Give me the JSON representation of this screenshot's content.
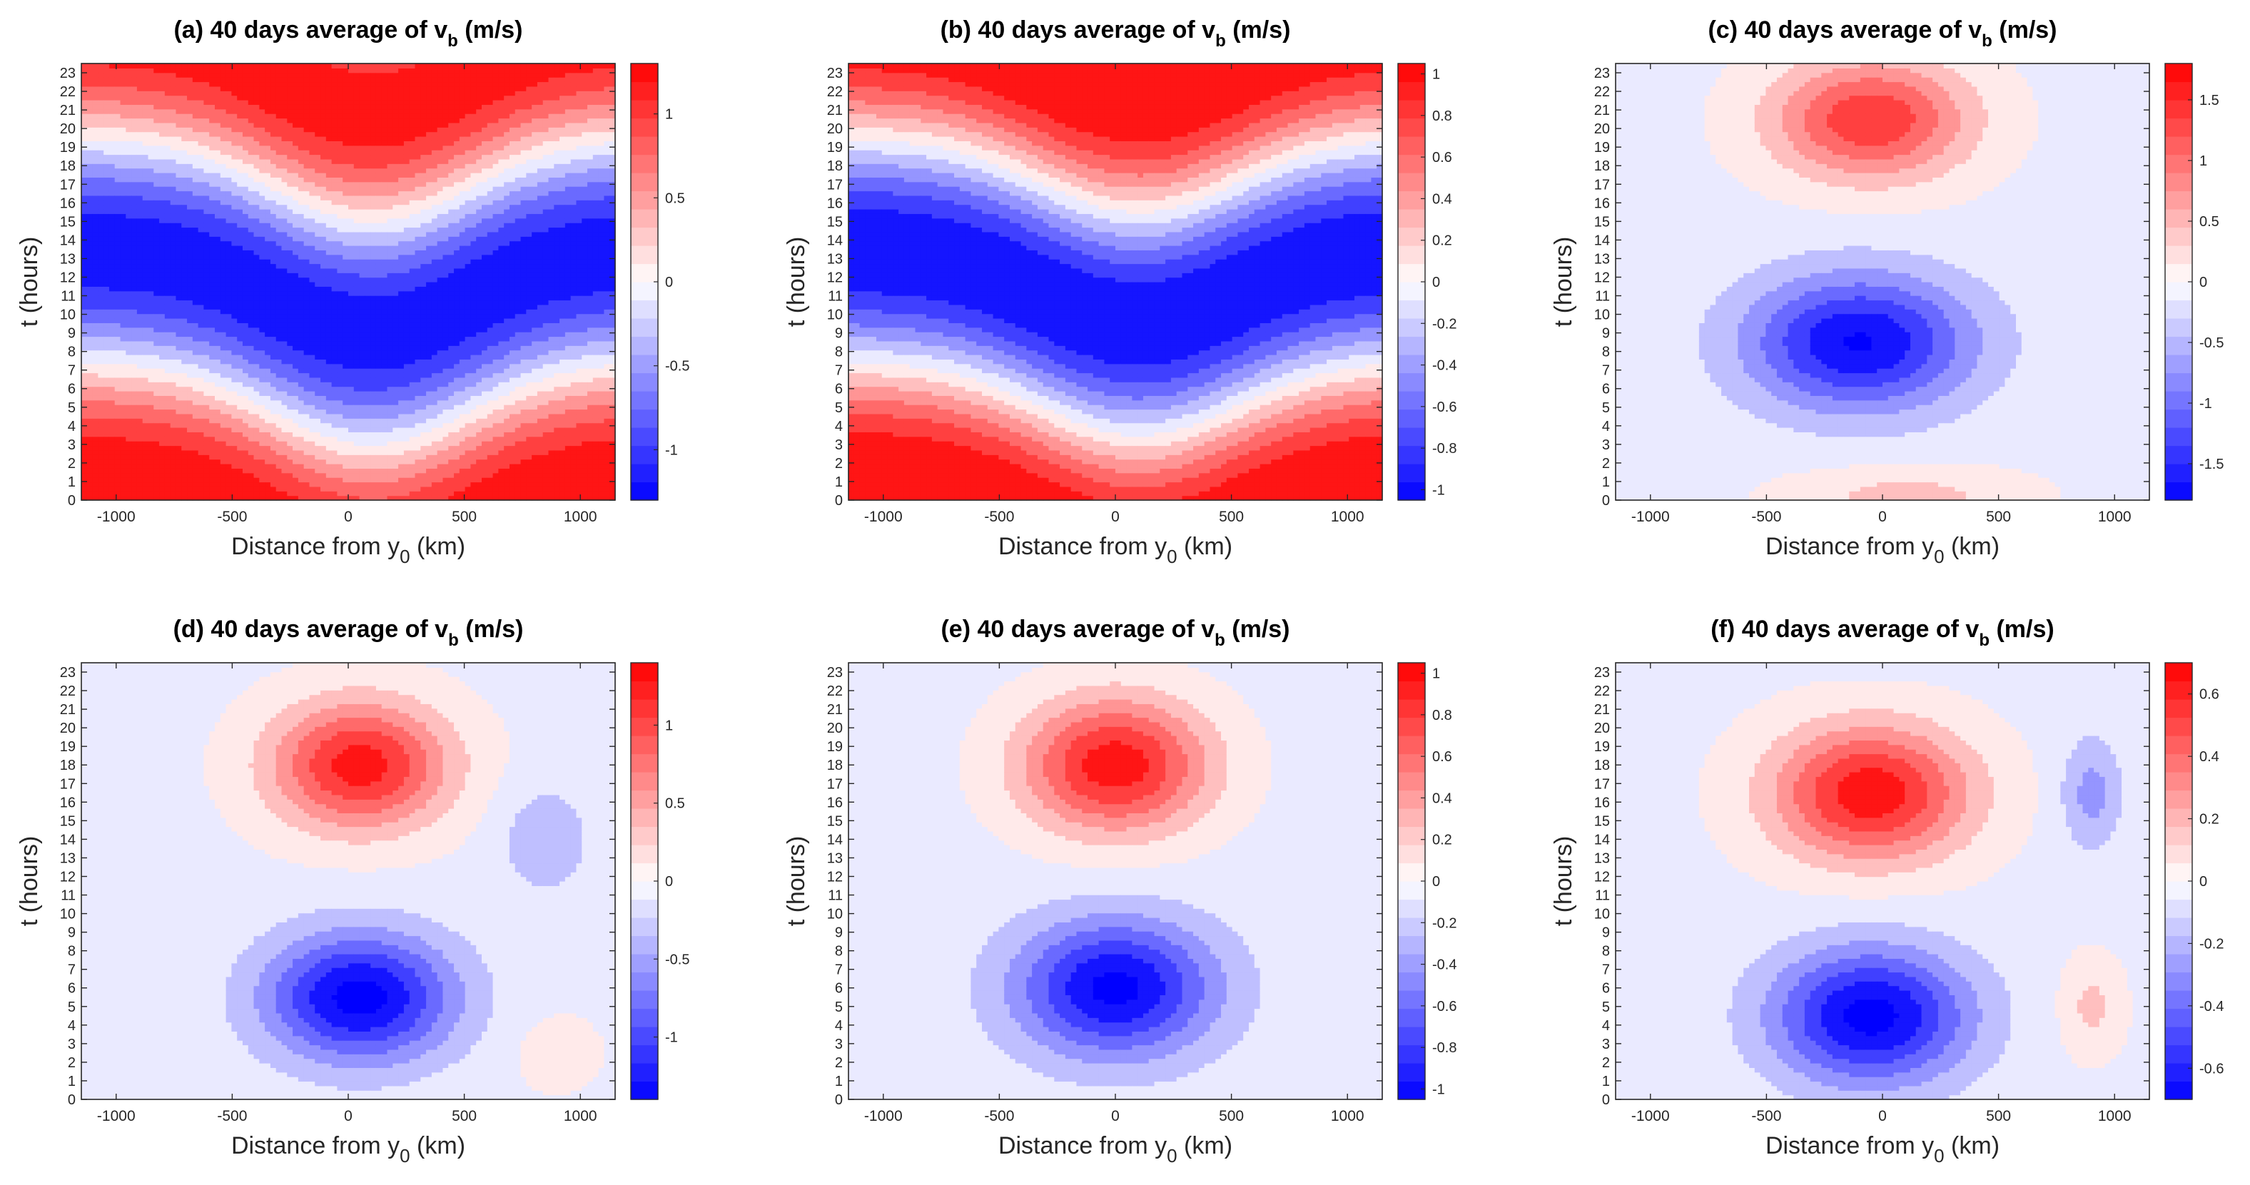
{
  "figure": {
    "colorbar_colors": {
      "negative_end": "#0000ff",
      "zero": "#ffffff",
      "positive_end": "#ff0000"
    }
  },
  "chart_data": [
    {
      "type": "heatmap",
      "title_prefix": "(a) 40 days average of v",
      "title_subscript": "b",
      "title_suffix": " (m/s)",
      "xlabel_prefix": "Distance from y",
      "xlabel_subscript": "0",
      "xlabel_suffix": " (km)",
      "ylabel": "t (hours)",
      "xlim": [
        -1150,
        1150
      ],
      "ylim": [
        0,
        23.5
      ],
      "xticks": [
        -1000,
        -500,
        0,
        500,
        1000
      ],
      "xtick_labels": [
        "-1000",
        "-500",
        "0",
        "500",
        "1000"
      ],
      "yticks": [
        0,
        1,
        2,
        3,
        4,
        5,
        6,
        7,
        8,
        9,
        10,
        11,
        12,
        13,
        14,
        15,
        16,
        17,
        18,
        19,
        20,
        21,
        22,
        23
      ],
      "ytick_labels": [
        "0",
        "1",
        "2",
        "3",
        "4",
        "5",
        "6",
        "7",
        "8",
        "9",
        "10",
        "11",
        "12",
        "13",
        "14",
        "15",
        "16",
        "17",
        "18",
        "19",
        "20",
        "21",
        "22",
        "23"
      ],
      "clim": [
        -1.3,
        1.3
      ],
      "colorbar_ticks": [
        -1,
        -0.5,
        0,
        0.5,
        1
      ],
      "colorbar_tick_labels": [
        "-1",
        "-0.5",
        "0",
        "0.5",
        "1"
      ],
      "field": {
        "kind": "wavy",
        "amplitude": 1.25,
        "phase_hours": 1.5,
        "wave_amplitude_hours": 4.5,
        "wave_center_km": 100,
        "wave_width_km": 600
      }
    },
    {
      "type": "heatmap",
      "title_prefix": "(b) 40 days average of v",
      "title_subscript": "b",
      "title_suffix": " (m/s)",
      "xlabel_prefix": "Distance from y",
      "xlabel_subscript": "0",
      "xlabel_suffix": " (km)",
      "ylabel": "t (hours)",
      "xlim": [
        -1150,
        1150
      ],
      "ylim": [
        0,
        23.5
      ],
      "xticks": [
        -1000,
        -500,
        0,
        500,
        1000
      ],
      "xtick_labels": [
        "-1000",
        "-500",
        "0",
        "500",
        "1000"
      ],
      "yticks": [
        0,
        1,
        2,
        3,
        4,
        5,
        6,
        7,
        8,
        9,
        10,
        11,
        12,
        13,
        14,
        15,
        16,
        17,
        18,
        19,
        20,
        21,
        22,
        23
      ],
      "ytick_labels": [
        "0",
        "1",
        "2",
        "3",
        "4",
        "5",
        "6",
        "7",
        "8",
        "9",
        "10",
        "11",
        "12",
        "13",
        "14",
        "15",
        "16",
        "17",
        "18",
        "19",
        "20",
        "21",
        "22",
        "23"
      ],
      "clim": [
        -1.05,
        1.05
      ],
      "colorbar_ticks": [
        -1,
        -0.8,
        -0.6,
        -0.4,
        -0.2,
        0,
        0.2,
        0.4,
        0.6,
        0.8,
        1
      ],
      "colorbar_tick_labels": [
        "-1",
        "-0.8",
        "-0.6",
        "-0.4",
        "-0.2",
        "0",
        "0.2",
        "0.4",
        "0.6",
        "0.8",
        "1"
      ],
      "field": {
        "kind": "wavy",
        "amplitude": 1.05,
        "phase_hours": 1.5,
        "wave_amplitude_hours": 4.0,
        "wave_center_km": 100,
        "wave_width_km": 600
      }
    },
    {
      "type": "heatmap",
      "title_prefix": "(c) 40 days average of v",
      "title_subscript": "b",
      "title_suffix": " (m/s)",
      "xlabel_prefix": "Distance from y",
      "xlabel_subscript": "0",
      "xlabel_suffix": " (km)",
      "ylabel": "t (hours)",
      "xlim": [
        -1150,
        1150
      ],
      "ylim": [
        0,
        23.5
      ],
      "xticks": [
        -1000,
        -500,
        0,
        500,
        1000
      ],
      "xtick_labels": [
        "-1000",
        "-500",
        "0",
        "500",
        "1000"
      ],
      "yticks": [
        0,
        1,
        2,
        3,
        4,
        5,
        6,
        7,
        8,
        9,
        10,
        11,
        12,
        13,
        14,
        15,
        16,
        17,
        18,
        19,
        20,
        21,
        22,
        23
      ],
      "ytick_labels": [
        "0",
        "1",
        "2",
        "3",
        "4",
        "5",
        "6",
        "7",
        "8",
        "9",
        "10",
        "11",
        "12",
        "13",
        "14",
        "15",
        "16",
        "17",
        "18",
        "19",
        "20",
        "21",
        "22",
        "23"
      ],
      "clim": [
        -1.8,
        1.8
      ],
      "colorbar_ticks": [
        -1.5,
        -1,
        -0.5,
        0,
        0.5,
        1,
        1.5
      ],
      "colorbar_tick_labels": [
        "-1.5",
        "-1",
        "-0.5",
        "0",
        "0.5",
        "1",
        "1.5"
      ],
      "field": {
        "kind": "cells",
        "background": -0.08,
        "cells": [
          {
            "amp": 1.55,
            "x0": -50,
            "t0": 20.5,
            "sx": 420,
            "st": 3.2
          },
          {
            "amp": -1.75,
            "x0": -100,
            "t0": 8.5,
            "sx": 480,
            "st": 3.6
          },
          {
            "amp": 0.5,
            "x0": 100,
            "t0": 0.2,
            "sx": 500,
            "st": 1.6
          }
        ]
      }
    },
    {
      "type": "heatmap",
      "title_prefix": "(d) 40 days average of v",
      "title_subscript": "b",
      "title_suffix": " (m/s)",
      "xlabel_prefix": "Distance from y",
      "xlabel_subscript": "0",
      "xlabel_suffix": " (km)",
      "ylabel": "t (hours)",
      "xlim": [
        -1150,
        1150
      ],
      "ylim": [
        0,
        23.5
      ],
      "xticks": [
        -1000,
        -500,
        0,
        500,
        1000
      ],
      "xtick_labels": [
        "-1000",
        "-500",
        "0",
        "500",
        "1000"
      ],
      "yticks": [
        0,
        1,
        2,
        3,
        4,
        5,
        6,
        7,
        8,
        9,
        10,
        11,
        12,
        13,
        14,
        15,
        16,
        17,
        18,
        19,
        20,
        21,
        22,
        23
      ],
      "ytick_labels": [
        "0",
        "1",
        "2",
        "3",
        "4",
        "5",
        "6",
        "7",
        "8",
        "9",
        "10",
        "11",
        "12",
        "13",
        "14",
        "15",
        "16",
        "17",
        "18",
        "19",
        "20",
        "21",
        "22",
        "23"
      ],
      "clim": [
        -1.4,
        1.4
      ],
      "colorbar_ticks": [
        -1,
        -0.5,
        0,
        0.5,
        1
      ],
      "colorbar_tick_labels": [
        "-1",
        "-0.5",
        "0",
        "0.5",
        "1"
      ],
      "field": {
        "kind": "cells",
        "background": -0.06,
        "cells": [
          {
            "amp": 1.35,
            "x0": 50,
            "t0": 18,
            "sx": 380,
            "st": 3.4
          },
          {
            "amp": -1.45,
            "x0": 50,
            "t0": 5.5,
            "sx": 400,
            "st": 3.4
          },
          {
            "amp": -0.35,
            "x0": 850,
            "t0": 14,
            "sx": 200,
            "st": 3.0
          },
          {
            "amp": 0.22,
            "x0": 900,
            "t0": 2.5,
            "sx": 180,
            "st": 2.0
          }
        ]
      }
    },
    {
      "type": "heatmap",
      "title_prefix": "(e) 40 days average of v",
      "title_subscript": "b",
      "title_suffix": " (m/s)",
      "xlabel_prefix": "Distance from y",
      "xlabel_subscript": "0",
      "xlabel_suffix": " (km)",
      "ylabel": "t (hours)",
      "xlim": [
        -1150,
        1150
      ],
      "ylim": [
        0,
        23.5
      ],
      "xticks": [
        -1000,
        -500,
        0,
        500,
        1000
      ],
      "xtick_labels": [
        "-1000",
        "-500",
        "0",
        "500",
        "1000"
      ],
      "yticks": [
        0,
        1,
        2,
        3,
        4,
        5,
        6,
        7,
        8,
        9,
        10,
        11,
        12,
        13,
        14,
        15,
        16,
        17,
        18,
        19,
        20,
        21,
        22,
        23
      ],
      "ytick_labels": [
        "0",
        "1",
        "2",
        "3",
        "4",
        "5",
        "6",
        "7",
        "8",
        "9",
        "10",
        "11",
        "12",
        "13",
        "14",
        "15",
        "16",
        "17",
        "18",
        "19",
        "20",
        "21",
        "22",
        "23"
      ],
      "clim": [
        -1.05,
        1.05
      ],
      "colorbar_ticks": [
        -1,
        -0.8,
        -0.6,
        -0.4,
        -0.2,
        0,
        0.2,
        0.4,
        0.6,
        0.8,
        1
      ],
      "colorbar_tick_labels": [
        "-1",
        "-0.8",
        "-0.6",
        "-0.4",
        "-0.2",
        "0",
        "0.2",
        "0.4",
        "0.6",
        "0.8",
        "1"
      ],
      "field": {
        "kind": "cells",
        "background": -0.06,
        "cells": [
          {
            "amp": 1.05,
            "x0": 0,
            "t0": 18,
            "sx": 400,
            "st": 3.6
          },
          {
            "amp": -1.05,
            "x0": 0,
            "t0": 6,
            "sx": 420,
            "st": 3.6
          }
        ]
      }
    },
    {
      "type": "heatmap",
      "title_prefix": "(f) 40 days average of v",
      "title_subscript": "b",
      "title_suffix": " (m/s)",
      "xlabel_prefix": "Distance from y",
      "xlabel_subscript": "0",
      "xlabel_suffix": " (km)",
      "ylabel": "t (hours)",
      "xlim": [
        -1150,
        1150
      ],
      "ylim": [
        0,
        23.5
      ],
      "xticks": [
        -1000,
        -500,
        0,
        500,
        1000
      ],
      "xtick_labels": [
        "-1000",
        "-500",
        "0",
        "500",
        "1000"
      ],
      "yticks": [
        0,
        1,
        2,
        3,
        4,
        5,
        6,
        7,
        8,
        9,
        10,
        11,
        12,
        13,
        14,
        15,
        16,
        17,
        18,
        19,
        20,
        21,
        22,
        23
      ],
      "ytick_labels": [
        "0",
        "1",
        "2",
        "3",
        "4",
        "5",
        "6",
        "7",
        "8",
        "9",
        "10",
        "11",
        "12",
        "13",
        "14",
        "15",
        "16",
        "17",
        "18",
        "19",
        "20",
        "21",
        "22",
        "23"
      ],
      "clim": [
        -0.7,
        0.7
      ],
      "colorbar_ticks": [
        -0.6,
        -0.4,
        -0.2,
        0,
        0.2,
        0.4,
        0.6
      ],
      "colorbar_tick_labels": [
        "-0.6",
        "-0.4",
        "-0.2",
        "0",
        "0.2",
        "0.4",
        "0.6"
      ],
      "field": {
        "kind": "cells",
        "background": -0.03,
        "cells": [
          {
            "amp": 0.7,
            "x0": -50,
            "t0": 16.5,
            "sx": 420,
            "st": 3.6
          },
          {
            "amp": -0.72,
            "x0": -50,
            "t0": 4.5,
            "sx": 420,
            "st": 3.6
          },
          {
            "amp": -0.25,
            "x0": 900,
            "t0": 16.5,
            "sx": 130,
            "st": 3.0
          },
          {
            "amp": 0.18,
            "x0": 900,
            "t0": 5,
            "sx": 130,
            "st": 2.6
          },
          {
            "amp": -0.12,
            "x0": 0,
            "t0": 24.5,
            "sx": 400,
            "st": 1.2
          }
        ]
      }
    }
  ]
}
